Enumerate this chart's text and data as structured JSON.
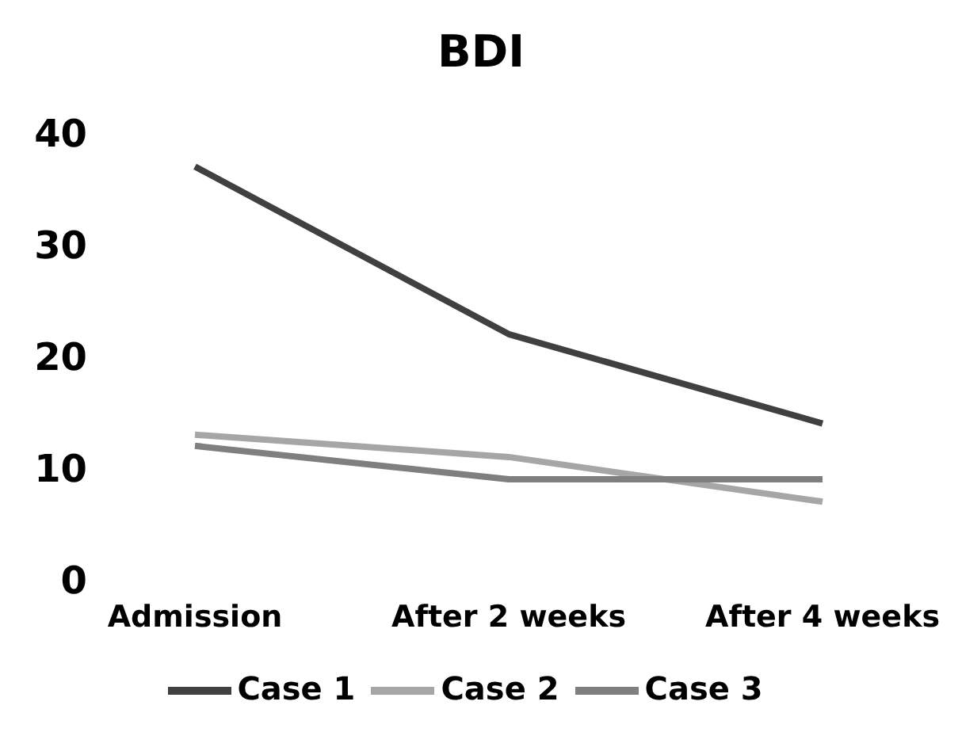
{
  "chart_data": {
    "type": "line",
    "title": "BDI",
    "categories": [
      "Admission",
      "After 2 weeks",
      "After 4 weeks"
    ],
    "series": [
      {
        "name": "Case 1",
        "color": "#404040",
        "values": [
          37,
          22,
          14
        ]
      },
      {
        "name": "Case 2",
        "color": "#a6a6a6",
        "values": [
          13,
          11,
          7
        ]
      },
      {
        "name": "Case 3",
        "color": "#7f7f7f",
        "values": [
          12,
          9,
          9
        ]
      }
    ],
    "ylim": [
      0,
      40
    ],
    "yticks": [
      0,
      10,
      20,
      30,
      40
    ],
    "legend": "bottom",
    "marker": "none",
    "line_style": "solid"
  }
}
